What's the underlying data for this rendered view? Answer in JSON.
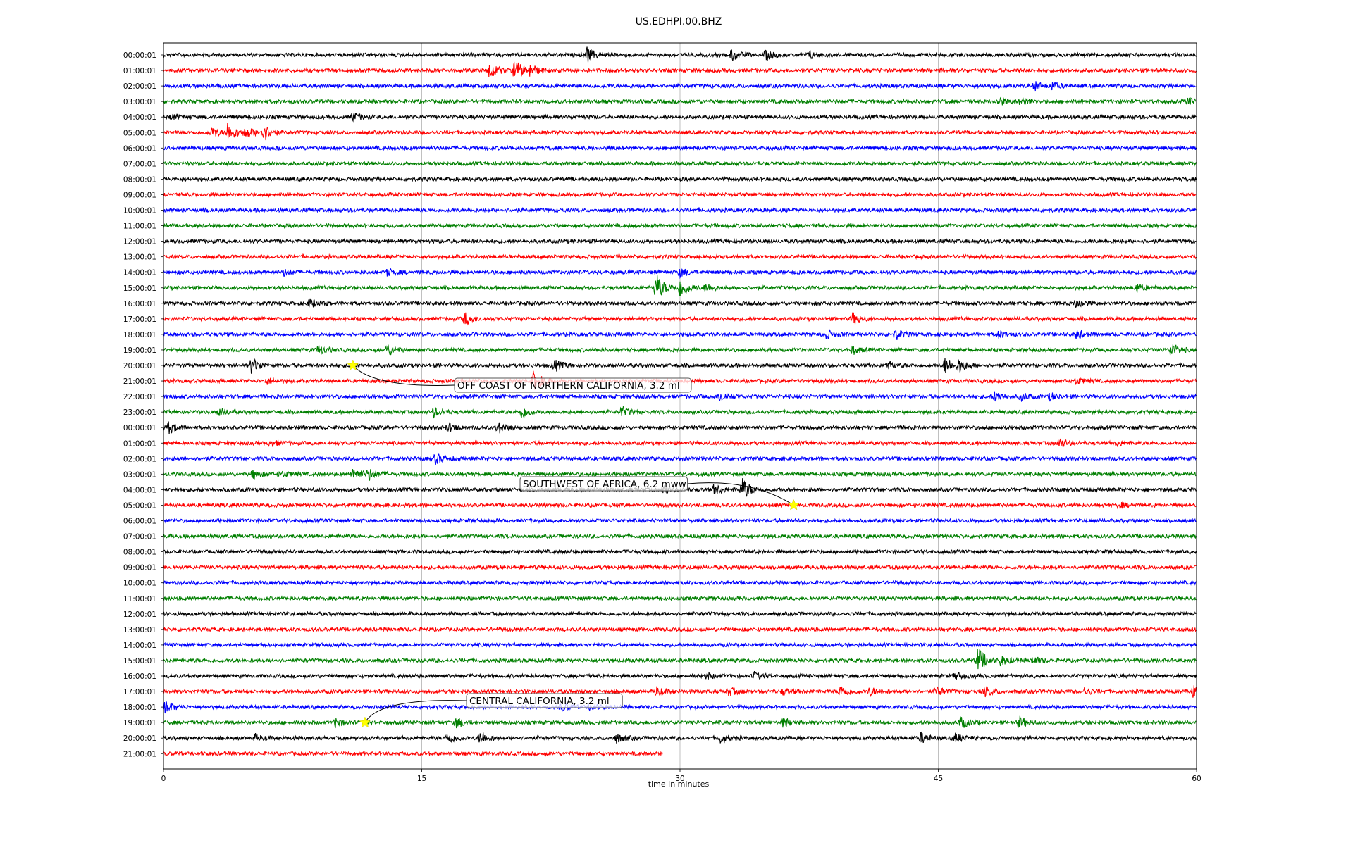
{
  "chart_data": {
    "type": "line",
    "title": "US.EDHPI.00.BHZ",
    "xlabel": "time in minutes",
    "ylabel": "",
    "xlim": [
      0,
      60
    ],
    "xticks": [
      "0",
      "15",
      "30",
      "45",
      "60"
    ],
    "grid": "vertical",
    "colors_cycle": [
      "#000000",
      "#ff0000",
      "#0000ff",
      "#007f00"
    ],
    "row_labels": [
      "00:00:01",
      "01:00:01",
      "02:00:01",
      "03:00:01",
      "04:00:01",
      "05:00:01",
      "06:00:01",
      "07:00:01",
      "08:00:01",
      "09:00:01",
      "10:00:01",
      "11:00:01",
      "12:00:01",
      "13:00:01",
      "14:00:01",
      "15:00:01",
      "16:00:01",
      "17:00:01",
      "18:00:01",
      "19:00:01",
      "20:00:01",
      "21:00:01",
      "22:00:01",
      "23:00:01",
      "00:00:01",
      "01:00:01",
      "02:00:01",
      "03:00:01",
      "04:00:01",
      "05:00:01",
      "06:00:01",
      "07:00:01",
      "08:00:01",
      "09:00:01",
      "10:00:01",
      "11:00:01",
      "12:00:01",
      "13:00:01",
      "14:00:01",
      "15:00:01",
      "16:00:01",
      "17:00:01",
      "18:00:01",
      "19:00:01",
      "20:00:01",
      "21:00:01"
    ],
    "last_row_end_minutes": 29,
    "bursts": [
      {
        "row": 0,
        "t": 24.6,
        "amp": 10
      },
      {
        "row": 0,
        "t": 33.0,
        "amp": 8
      },
      {
        "row": 0,
        "t": 35.0,
        "amp": 7
      },
      {
        "row": 0,
        "t": 37.5,
        "amp": 5
      },
      {
        "row": 1,
        "t": 18.9,
        "amp": 13
      },
      {
        "row": 1,
        "t": 20.4,
        "amp": 16
      },
      {
        "row": 1,
        "t": 21.3,
        "amp": 8
      },
      {
        "row": 2,
        "t": 50.6,
        "amp": 6
      },
      {
        "row": 2,
        "t": 51.6,
        "amp": 5
      },
      {
        "row": 3,
        "t": 48.5,
        "amp": 6
      },
      {
        "row": 3,
        "t": 49.8,
        "amp": 5
      },
      {
        "row": 3,
        "t": 59.5,
        "amp": 4
      },
      {
        "row": 4,
        "t": 0.5,
        "amp": 4
      },
      {
        "row": 4,
        "t": 11.0,
        "amp": 6
      },
      {
        "row": 5,
        "t": 2.8,
        "amp": 6
      },
      {
        "row": 5,
        "t": 3.7,
        "amp": 14
      },
      {
        "row": 5,
        "t": 4.8,
        "amp": 8
      },
      {
        "row": 5,
        "t": 5.8,
        "amp": 12
      },
      {
        "row": 14,
        "t": 7.0,
        "amp": 4
      },
      {
        "row": 14,
        "t": 13.0,
        "amp": 4
      },
      {
        "row": 14,
        "t": 30.0,
        "amp": 6
      },
      {
        "row": 15,
        "t": 28.6,
        "amp": 20
      },
      {
        "row": 15,
        "t": 30.0,
        "amp": 14
      },
      {
        "row": 15,
        "t": 31.5,
        "amp": 6
      },
      {
        "row": 15,
        "t": 56.5,
        "amp": 5
      },
      {
        "row": 16,
        "t": 8.5,
        "amp": 6
      },
      {
        "row": 16,
        "t": 53.0,
        "amp": 6
      },
      {
        "row": 17,
        "t": 17.5,
        "amp": 9
      },
      {
        "row": 17,
        "t": 40.0,
        "amp": 8
      },
      {
        "row": 18,
        "t": 38.5,
        "amp": 6
      },
      {
        "row": 18,
        "t": 42.5,
        "amp": 7
      },
      {
        "row": 18,
        "t": 48.5,
        "amp": 5
      },
      {
        "row": 18,
        "t": 53.0,
        "amp": 6
      },
      {
        "row": 19,
        "t": 9.0,
        "amp": 6
      },
      {
        "row": 19,
        "t": 13.0,
        "amp": 8
      },
      {
        "row": 19,
        "t": 40.0,
        "amp": 6
      },
      {
        "row": 19,
        "t": 58.5,
        "amp": 10
      },
      {
        "row": 20,
        "t": 5.1,
        "amp": 10
      },
      {
        "row": 20,
        "t": 22.7,
        "amp": 8
      },
      {
        "row": 20,
        "t": 42.0,
        "amp": 6
      },
      {
        "row": 20,
        "t": 45.4,
        "amp": 12
      },
      {
        "row": 20,
        "t": 46.2,
        "amp": 9
      },
      {
        "row": 21,
        "t": 6.0,
        "amp": 4
      },
      {
        "row": 21,
        "t": 21.5,
        "amp": 14
      },
      {
        "row": 21,
        "t": 53.0,
        "amp": 4
      },
      {
        "row": 22,
        "t": 32.3,
        "amp": 7
      },
      {
        "row": 22,
        "t": 48.3,
        "amp": 7
      },
      {
        "row": 22,
        "t": 49.8,
        "amp": 5
      },
      {
        "row": 22,
        "t": 51.5,
        "amp": 5
      },
      {
        "row": 23,
        "t": 3.2,
        "amp": 6
      },
      {
        "row": 23,
        "t": 15.7,
        "amp": 6
      },
      {
        "row": 23,
        "t": 20.8,
        "amp": 9
      },
      {
        "row": 23,
        "t": 26.6,
        "amp": 7
      },
      {
        "row": 24,
        "t": 0.3,
        "amp": 8
      },
      {
        "row": 24,
        "t": 16.5,
        "amp": 6
      },
      {
        "row": 24,
        "t": 19.4,
        "amp": 8
      },
      {
        "row": 25,
        "t": 6.2,
        "amp": 4
      },
      {
        "row": 25,
        "t": 52.0,
        "amp": 6
      },
      {
        "row": 25,
        "t": 55.4,
        "amp": 4
      },
      {
        "row": 26,
        "t": 15.8,
        "amp": 7
      },
      {
        "row": 27,
        "t": 5.2,
        "amp": 6
      },
      {
        "row": 27,
        "t": 6.8,
        "amp": 4
      },
      {
        "row": 27,
        "t": 11.0,
        "amp": 10
      },
      {
        "row": 27,
        "t": 11.9,
        "amp": 8
      },
      {
        "row": 28,
        "t": 29.0,
        "amp": 6
      },
      {
        "row": 28,
        "t": 32.0,
        "amp": 8
      },
      {
        "row": 28,
        "t": 33.6,
        "amp": 16
      },
      {
        "row": 29,
        "t": 55.5,
        "amp": 4
      },
      {
        "row": 39,
        "t": 47.3,
        "amp": 18
      },
      {
        "row": 39,
        "t": 48.6,
        "amp": 7
      },
      {
        "row": 39,
        "t": 50.5,
        "amp": 5
      },
      {
        "row": 40,
        "t": 31.5,
        "amp": 4
      },
      {
        "row": 40,
        "t": 34.3,
        "amp": 5
      },
      {
        "row": 40,
        "t": 46.0,
        "amp": 5
      },
      {
        "row": 41,
        "t": 28.6,
        "amp": 7
      },
      {
        "row": 41,
        "t": 32.8,
        "amp": 6
      },
      {
        "row": 41,
        "t": 36.0,
        "amp": 5
      },
      {
        "row": 41,
        "t": 39.3,
        "amp": 8
      },
      {
        "row": 41,
        "t": 41.0,
        "amp": 6
      },
      {
        "row": 41,
        "t": 44.9,
        "amp": 6
      },
      {
        "row": 41,
        "t": 47.7,
        "amp": 7
      },
      {
        "row": 41,
        "t": 53.5,
        "amp": 5
      },
      {
        "row": 41,
        "t": 59.8,
        "amp": 7
      },
      {
        "row": 42,
        "t": 0.1,
        "amp": 8
      },
      {
        "row": 42,
        "t": 23.1,
        "amp": 5
      },
      {
        "row": 42,
        "t": 24.8,
        "amp": 5
      },
      {
        "row": 43,
        "t": 10.0,
        "amp": 6
      },
      {
        "row": 43,
        "t": 17.0,
        "amp": 7
      },
      {
        "row": 43,
        "t": 36.0,
        "amp": 6
      },
      {
        "row": 43,
        "t": 46.3,
        "amp": 8
      },
      {
        "row": 43,
        "t": 49.7,
        "amp": 8
      },
      {
        "row": 44,
        "t": 5.3,
        "amp": 5
      },
      {
        "row": 44,
        "t": 16.5,
        "amp": 8
      },
      {
        "row": 44,
        "t": 18.4,
        "amp": 10
      },
      {
        "row": 44,
        "t": 26.3,
        "amp": 6
      },
      {
        "row": 44,
        "t": 32.3,
        "amp": 7
      },
      {
        "row": 44,
        "t": 44.0,
        "amp": 7
      },
      {
        "row": 44,
        "t": 46.0,
        "amp": 6
      }
    ],
    "annotations": [
      {
        "text": "OFF COAST OF NORTHERN CALIFORNIA, 3.2 ml",
        "row": 20,
        "t": 11.0
      },
      {
        "text": "SOUTHWEST OF AFRICA, 6.2 mww",
        "row": 29,
        "t": 36.6
      },
      {
        "text": "CENTRAL CALIFORNIA, 3.2 ml",
        "row": 43,
        "t": 11.7
      }
    ],
    "marker_color": "#ffff00"
  }
}
